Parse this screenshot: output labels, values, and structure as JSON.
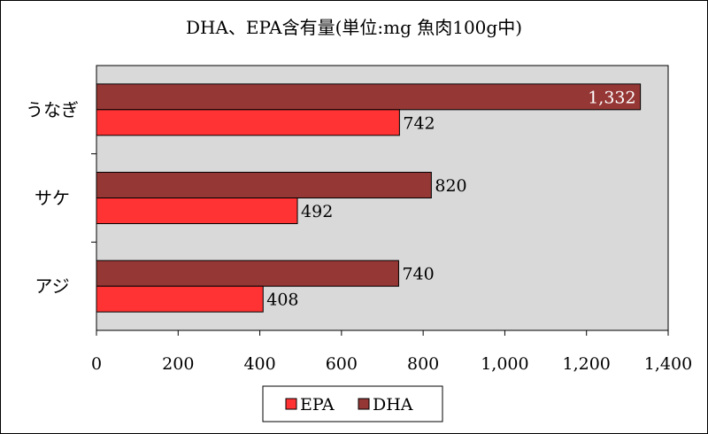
{
  "chart_data": {
    "type": "bar",
    "orientation": "horizontal",
    "title": "DHA、EPA含有量(単位:mg 魚肉100g中)",
    "categories": [
      "うなぎ",
      "サケ",
      "アジ"
    ],
    "series": [
      {
        "name": "DHA",
        "values": [
          1332,
          820,
          740
        ],
        "color": "#953735"
      },
      {
        "name": "EPA",
        "values": [
          742,
          492,
          408
        ],
        "color": "#ff3333"
      }
    ],
    "value_labels": {
      "DHA": [
        "1,332",
        "820",
        "740"
      ],
      "EPA": [
        "742",
        "492",
        "408"
      ]
    },
    "xlim": [
      0,
      1400
    ],
    "x_ticks": [
      0,
      200,
      400,
      600,
      800,
      1000,
      1200,
      1400
    ],
    "x_tick_labels": [
      "0",
      "200",
      "400",
      "600",
      "800",
      "1,000",
      "1,200",
      "1,400"
    ],
    "legend": {
      "position": "bottom",
      "items": [
        "EPA",
        "DHA"
      ]
    },
    "plot_background": "#d9d9d9",
    "grid": false
  }
}
